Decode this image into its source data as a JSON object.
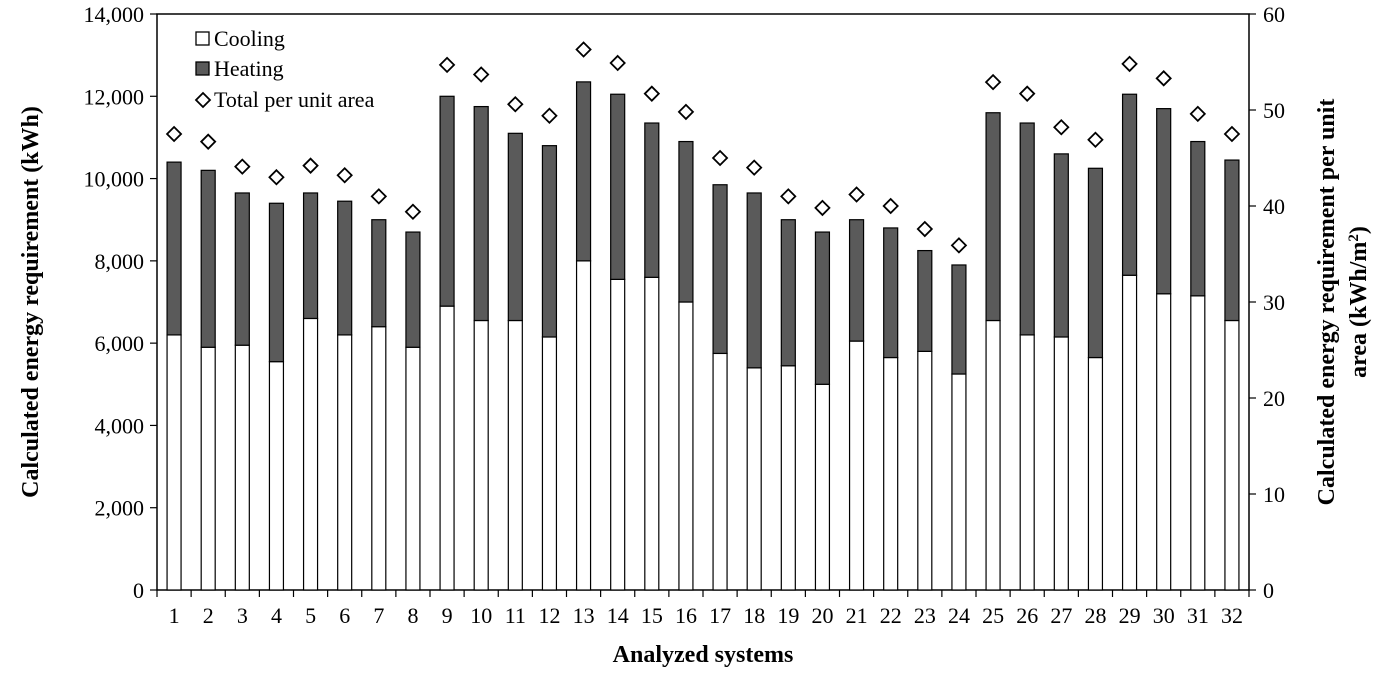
{
  "chart_data": {
    "type": "bar",
    "stacked": true,
    "categories": [
      "1",
      "2",
      "3",
      "4",
      "5",
      "6",
      "7",
      "8",
      "9",
      "10",
      "11",
      "12",
      "13",
      "14",
      "15",
      "16",
      "17",
      "18",
      "19",
      "20",
      "21",
      "22",
      "23",
      "24",
      "25",
      "26",
      "27",
      "28",
      "29",
      "30",
      "31",
      "32"
    ],
    "series": [
      {
        "name": "Cooling",
        "axis": "left",
        "color": "#ffffff",
        "values": [
          6200,
          5900,
          5950,
          5550,
          6600,
          6200,
          6400,
          5900,
          6900,
          6550,
          6550,
          6150,
          8000,
          7550,
          7600,
          7000,
          5750,
          5400,
          5450,
          5000,
          6050,
          5650,
          5800,
          5250,
          6550,
          6200,
          6150,
          5650,
          7650,
          7200,
          7150,
          6550
        ]
      },
      {
        "name": "Heating",
        "axis": "left",
        "color": "#5a5a5a",
        "values": [
          4200,
          4300,
          3700,
          3850,
          3050,
          3250,
          2600,
          2800,
          5100,
          5200,
          4550,
          4650,
          4350,
          4500,
          3750,
          3900,
          4100,
          4250,
          3550,
          3700,
          2950,
          3150,
          2450,
          2650,
          5050,
          5150,
          4450,
          4600,
          4400,
          4500,
          3750,
          3900
        ]
      },
      {
        "name": "Total per unit area",
        "axis": "right",
        "marker": "diamond",
        "values": [
          47.5,
          46.7,
          44.1,
          43.0,
          44.2,
          43.2,
          41.0,
          39.4,
          54.7,
          53.7,
          50.6,
          49.4,
          56.3,
          54.9,
          51.7,
          49.8,
          45.0,
          44.0,
          41.0,
          39.8,
          41.2,
          40.0,
          37.6,
          35.9,
          52.9,
          51.7,
          48.2,
          46.9,
          54.8,
          53.3,
          49.6,
          47.5
        ]
      }
    ],
    "xlabel": "Analyzed systems",
    "ylabel": "Calculated energy requirement (kWh)",
    "ylabel_right_line1": "Calculated energy requirement per unit",
    "ylabel_right_line2_text": "area (kWh/m",
    "ylabel_right_sup": "2",
    "ylabel_right_close": ")",
    "ylim": [
      0,
      14000
    ],
    "yticks": [
      "0",
      "2,000",
      "4,000",
      "6,000",
      "8,000",
      "10,000",
      "12,000",
      "14,000"
    ],
    "ylim_right": [
      0,
      60
    ],
    "yticks_right": [
      "0",
      "10",
      "20",
      "30",
      "40",
      "50",
      "60"
    ],
    "legend_position": "top-left",
    "grid": false
  }
}
